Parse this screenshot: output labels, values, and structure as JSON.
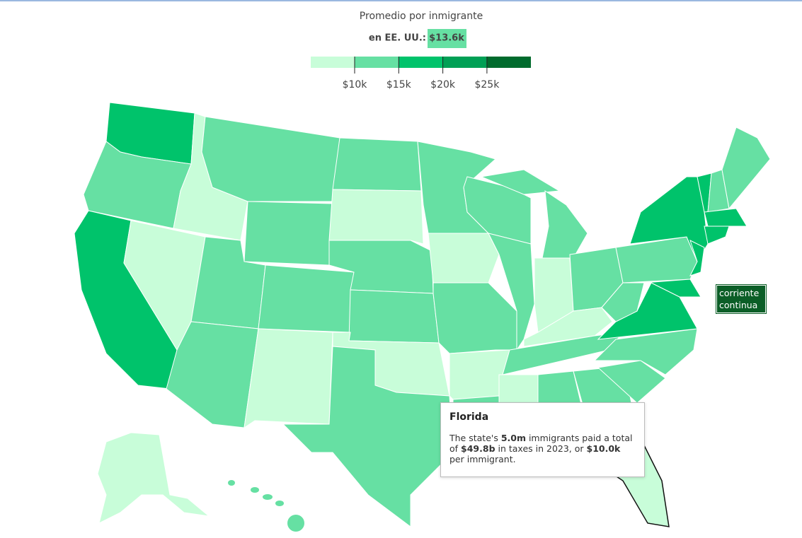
{
  "legend": {
    "title": "Promedio por inmigrante",
    "us_label": "en EE. UU.:",
    "us_value": "$13.6k",
    "ticks": [
      "$10k",
      "$15k",
      "$20k",
      "$25k"
    ]
  },
  "tooltip": {
    "title": "Florida",
    "segments": [
      {
        "text": "The state's "
      },
      {
        "text": "5.0m",
        "bold": true
      },
      {
        "text": " immigrants paid a total of "
      },
      {
        "text": "$49.8b",
        "bold": true
      },
      {
        "text": " in taxes in 2023, or "
      },
      {
        "text": "$10.0k",
        "bold": true
      },
      {
        "text": " per immigrant."
      }
    ]
  },
  "annotation": "corriente continua"
}
